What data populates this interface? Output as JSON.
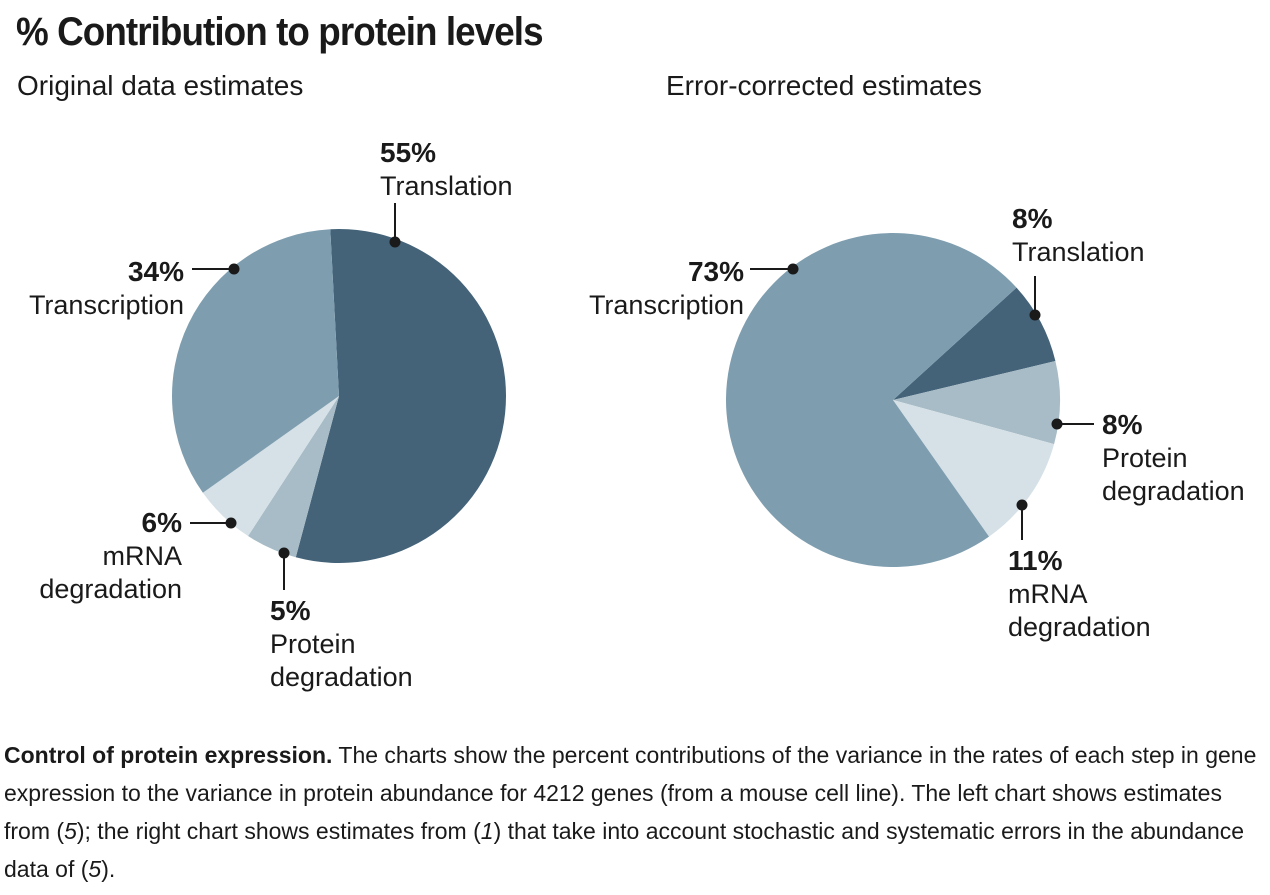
{
  "title": "% Contribution to protein levels",
  "chart_data": [
    {
      "type": "pie",
      "subtitle": "Original data estimates",
      "slices": [
        {
          "label": "Translation",
          "pct_text": "55%",
          "value": 55,
          "color": "#446379"
        },
        {
          "label": "Protein degradation",
          "pct_text": "5%",
          "value": 5,
          "color": "#a7bcc6"
        },
        {
          "label": "mRNA degradation",
          "pct_text": "6%",
          "value": 6,
          "color": "#d6e1e7"
        },
        {
          "label": "Transcription",
          "pct_text": "34%",
          "value": 34,
          "color": "#7e9eb0"
        }
      ]
    },
    {
      "type": "pie",
      "subtitle": "Error-corrected estimates",
      "slices": [
        {
          "label": "Translation",
          "pct_text": "8%",
          "value": 8,
          "color": "#446379"
        },
        {
          "label": "Protein degradation",
          "pct_text": "8%",
          "value": 8,
          "color": "#a7bcc6"
        },
        {
          "label": "mRNA degradation",
          "pct_text": "11%",
          "value": 11,
          "color": "#d6e1e7"
        },
        {
          "label": "Transcription",
          "pct_text": "73%",
          "value": 73,
          "color": "#7e9eb0"
        }
      ]
    }
  ],
  "caption": {
    "lead": "Control of protein expression.",
    "segments": [
      {
        "text": " The charts show the percent contributions of the variance in the rates of each step in gene expression to the variance in protein abundance for 4212 genes (from a mouse cell line). The left chart shows estimates from (",
        "italic": false
      },
      {
        "text": "5",
        "italic": true
      },
      {
        "text": "); the right chart shows estimates from (",
        "italic": false
      },
      {
        "text": "1",
        "italic": true
      },
      {
        "text": ") that take into account stochastic and systematic errors in the abundance data of (",
        "italic": false
      },
      {
        "text": "5",
        "italic": true
      },
      {
        "text": ").",
        "italic": false
      }
    ]
  }
}
